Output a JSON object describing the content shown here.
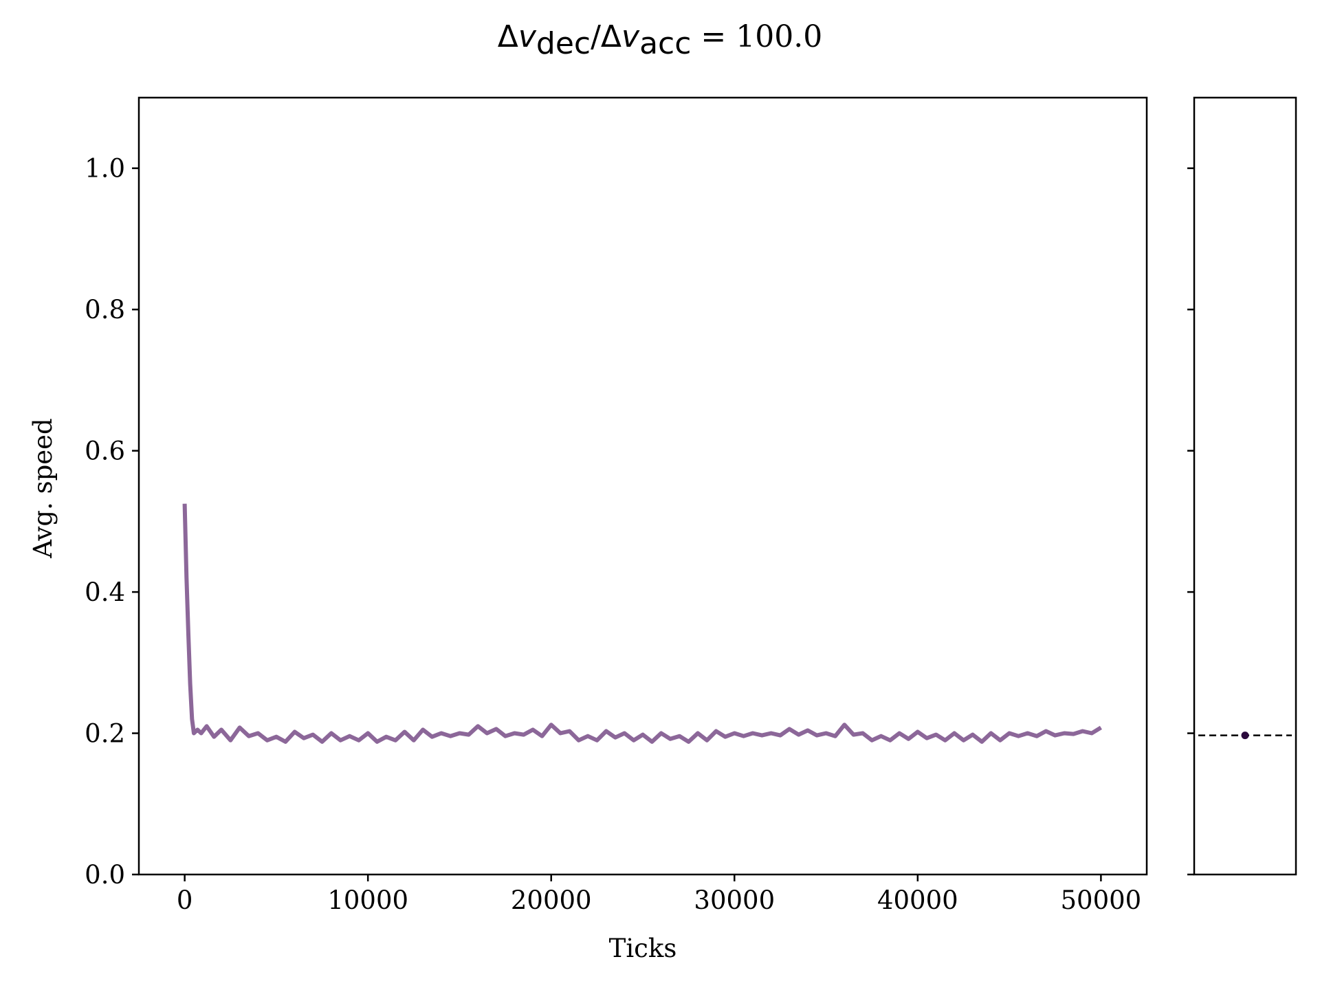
{
  "title": {
    "delta1": "Δ",
    "v1": "v",
    "sub1": "dec",
    "slash": "/Δ",
    "v2": "v",
    "sub2": "acc",
    "equals": " = ",
    "value": "100.0"
  },
  "chart_data": [
    {
      "type": "line",
      "xlabel": "Ticks",
      "ylabel": "Avg. speed",
      "xlim": [
        -2500,
        52500
      ],
      "ylim": [
        0.0,
        1.1
      ],
      "xticks": [
        0,
        10000,
        20000,
        30000,
        40000,
        50000
      ],
      "xtick_labels": [
        "0",
        "10000",
        "20000",
        "30000",
        "40000",
        "50000"
      ],
      "yticks": [
        0.0,
        0.2,
        0.4,
        0.6,
        0.8,
        1.0
      ],
      "ytick_labels": [
        "0.0",
        "0.2",
        "0.4",
        "0.6",
        "0.8",
        "1.0"
      ],
      "grid": false,
      "color": "#8c6799",
      "series": [
        {
          "x": [
            0,
            100,
            200,
            300,
            400,
            500,
            700,
            900,
            1200,
            1600,
            2000,
            2500,
            3000,
            3500,
            4000,
            4500,
            5000,
            5500,
            6000,
            6500,
            7000,
            7500,
            8000,
            8500,
            9000,
            9500,
            10000,
            10500,
            11000,
            11500,
            12000,
            12500,
            13000,
            13500,
            14000,
            14500,
            15000,
            15500,
            16000,
            16500,
            17000,
            17500,
            18000,
            18500,
            19000,
            19500,
            20000,
            20500,
            21000,
            21500,
            22000,
            22500,
            23000,
            23500,
            24000,
            24500,
            25000,
            25500,
            26000,
            26500,
            27000,
            27500,
            28000,
            28500,
            29000,
            29500,
            30000,
            30500,
            31000,
            31500,
            32000,
            32500,
            33000,
            33500,
            34000,
            34500,
            35000,
            35500,
            36000,
            36500,
            37000,
            37500,
            38000,
            38500,
            39000,
            39500,
            40000,
            40500,
            41000,
            41500,
            42000,
            42500,
            43000,
            43500,
            44000,
            44500,
            45000,
            45500,
            46000,
            46500,
            47000,
            47500,
            48000,
            48500,
            49000,
            49500,
            50000
          ],
          "y": [
            0.525,
            0.42,
            0.34,
            0.27,
            0.22,
            0.2,
            0.205,
            0.2,
            0.21,
            0.195,
            0.205,
            0.19,
            0.208,
            0.196,
            0.2,
            0.19,
            0.195,
            0.188,
            0.202,
            0.193,
            0.198,
            0.188,
            0.2,
            0.19,
            0.196,
            0.19,
            0.2,
            0.188,
            0.195,
            0.19,
            0.202,
            0.19,
            0.205,
            0.195,
            0.2,
            0.196,
            0.2,
            0.198,
            0.21,
            0.2,
            0.206,
            0.196,
            0.2,
            0.198,
            0.205,
            0.196,
            0.212,
            0.2,
            0.203,
            0.19,
            0.196,
            0.19,
            0.203,
            0.194,
            0.2,
            0.19,
            0.198,
            0.188,
            0.2,
            0.192,
            0.196,
            0.188,
            0.2,
            0.19,
            0.203,
            0.195,
            0.2,
            0.196,
            0.2,
            0.197,
            0.2,
            0.197,
            0.206,
            0.198,
            0.204,
            0.197,
            0.2,
            0.196,
            0.212,
            0.198,
            0.2,
            0.19,
            0.196,
            0.19,
            0.2,
            0.192,
            0.202,
            0.193,
            0.198,
            0.19,
            0.2,
            0.19,
            0.198,
            0.188,
            0.2,
            0.19,
            0.2,
            0.196,
            0.2,
            0.196,
            0.203,
            0.197,
            0.2,
            0.199,
            0.203,
            0.2,
            0.208
          ]
        }
      ]
    },
    {
      "type": "scatter",
      "ylim": [
        0.0,
        1.1
      ],
      "points": [
        {
          "y": 0.197
        }
      ],
      "reference_line": {
        "y": 0.197,
        "style": "dashed",
        "color": "#000000"
      },
      "point_color": "#2b0a3d",
      "grid": false
    }
  ]
}
